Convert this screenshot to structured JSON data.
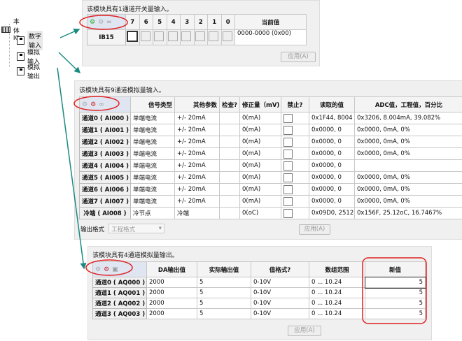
{
  "tree": {
    "root": "本体IO",
    "items": [
      "数字输入",
      "模拟输入",
      "模拟输出"
    ]
  },
  "digital": {
    "title": "该模块具有1通道开关量输入。",
    "bits": [
      "7",
      "6",
      "5",
      "4",
      "3",
      "2",
      "1",
      "0"
    ],
    "current_header": "当前值",
    "row_label": "IB15",
    "current_value": "0000-0000 (0x00)",
    "apply": "应用(A)"
  },
  "analog_in": {
    "title": "该模块具有9通道模拟量输入。",
    "headers": [
      "信号类型",
      "其他参数",
      "检查?",
      "修正量（mV)",
      "禁止?",
      "读取的值",
      "ADC值，工程值，百分比"
    ],
    "rows": [
      {
        "ch": "通道0 ( AI000 )",
        "type": "单端电流",
        "param": "+/- 20mA",
        "check": "",
        "corr": "0(mA)",
        "read": "0x1F44, 8004",
        "adc": "0x3206, 8.004mA, 39.082%"
      },
      {
        "ch": "通道1 ( AI001 )",
        "type": "单端电流",
        "param": "+/- 20mA",
        "check": "",
        "corr": "0(mA)",
        "read": "0x0000, 0",
        "adc": "0x0000, 0mA, 0%"
      },
      {
        "ch": "通道2 ( AI002 )",
        "type": "单端电流",
        "param": "+/- 20mA",
        "check": "",
        "corr": "0(mA)",
        "read": "0x0000, 0",
        "adc": "0x0000, 0mA, 0%"
      },
      {
        "ch": "通道3 ( AI003 )",
        "type": "单端电流",
        "param": "+/- 20mA",
        "check": "",
        "corr": "0(mA)",
        "read": "0x0000, 0",
        "adc": "0x0000, 0mA, 0%"
      },
      {
        "ch": "通道4 ( AI004 )",
        "type": "单端电流",
        "param": "+/- 20mA",
        "check": "",
        "corr": "0(mA)",
        "read": "0x0000, 0",
        "adc": ""
      },
      {
        "ch": "通道5 ( AI005 )",
        "type": "单端电流",
        "param": "+/- 20mA",
        "check": "",
        "corr": "0(mA)",
        "read": "0x0000, 0",
        "adc": "0x0000, 0mA, 0%"
      },
      {
        "ch": "通道6 ( AI006 )",
        "type": "单端电流",
        "param": "+/- 20mA",
        "check": "",
        "corr": "0(mA)",
        "read": "0x0000, 0",
        "adc": "0x0000, 0mA, 0%"
      },
      {
        "ch": "通道7 ( AI007 )",
        "type": "单端电流",
        "param": "+/- 20mA",
        "check": "",
        "corr": "0(mA)",
        "read": "0x0000, 0",
        "adc": "0x0000, 0mA, 0%"
      },
      {
        "ch": "冷端 ( AI008 )",
        "type": "冷节点",
        "param": "冷端",
        "check": "",
        "corr": "0(oC)",
        "read": "0x09D0, 2512",
        "adc": "0x156F, 25.12oC, 16.7467%"
      }
    ],
    "format_label": "输出格式",
    "format_value": "工程格式",
    "apply": "应用(A)"
  },
  "analog_out": {
    "title": "该模块具有4通道模拟量输出。",
    "headers": [
      "DA输出值",
      "实际输出值",
      "值格式?",
      "数组范围",
      "新值"
    ],
    "rows": [
      {
        "ch": "通道0 ( AQ000 )",
        "da": "2000",
        "actual": "5",
        "fmt": "0-10V",
        "range": "0 ... 10.24",
        "new": "5"
      },
      {
        "ch": "通道1 ( AQ001 )",
        "da": "2000",
        "actual": "5",
        "fmt": "0-10V",
        "range": "0 ... 10.24",
        "new": "5"
      },
      {
        "ch": "通道2 ( AQ002 )",
        "da": "2000",
        "actual": "5",
        "fmt": "0-10V",
        "range": "0 ... 10.24",
        "new": "5"
      },
      {
        "ch": "通道3 ( AQ003 )",
        "da": "2000",
        "actual": "5",
        "fmt": "0-10V",
        "range": "0 ... 10.24",
        "new": "5"
      }
    ],
    "apply": "应用(A)"
  },
  "colors": {
    "annotation": "#e02020",
    "arrow": "#1a8a80"
  }
}
